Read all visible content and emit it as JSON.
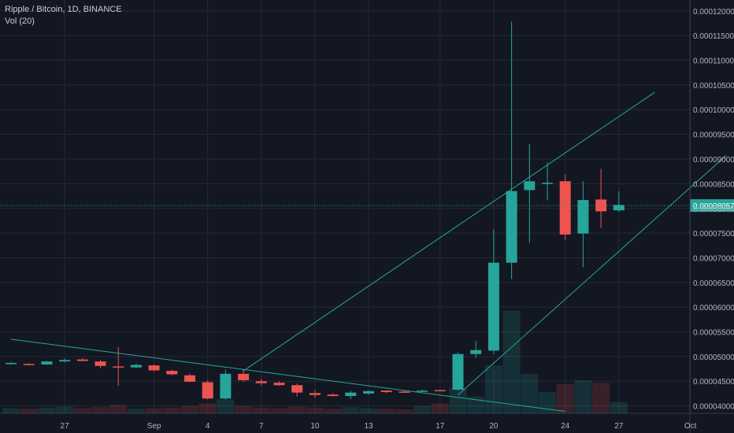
{
  "header": {
    "title": "Ripple / Bitcoin, 1D, BINANCE",
    "volume_label": "Vol (20)"
  },
  "colors": {
    "background": "#131722",
    "grid": "#252a36",
    "up": "#26a69a",
    "down": "#ef5350",
    "trendline": "#26a69a",
    "axis_text": "#b2b5be",
    "last_price_bg": "#26a69a"
  },
  "chart_data": {
    "type": "candlestick",
    "title": "Ripple / Bitcoin, 1D, BINANCE",
    "y_ticks": [
      "0.00004000",
      "0.00004500",
      "0.00005000",
      "0.00005500",
      "0.00006000",
      "0.00006500",
      "0.00007000",
      "0.00007500",
      "0.00008000",
      "0.00008500",
      "0.00009000",
      "0.00009500",
      "0.00010000",
      "0.00010500",
      "0.00011000",
      "0.00011500",
      "0.00012000"
    ],
    "y_range": [
      3.85e-05,
      0.0001222
    ],
    "x_ticks": [
      {
        "date": "2019-08-27",
        "label": "27"
      },
      {
        "date": "2019-09-01",
        "label": "Sep"
      },
      {
        "date": "2019-09-04",
        "label": "4"
      },
      {
        "date": "2019-09-07",
        "label": "7"
      },
      {
        "date": "2019-09-10",
        "label": "10"
      },
      {
        "date": "2019-09-13",
        "label": "13"
      },
      {
        "date": "2019-09-17",
        "label": "17"
      },
      {
        "date": "2019-09-20",
        "label": "20"
      },
      {
        "date": "2019-09-24",
        "label": "24"
      },
      {
        "date": "2019-09-27",
        "label": "27"
      },
      {
        "date": "2019-10-01",
        "label": "Oct"
      }
    ],
    "x_range": [
      "2019-08-24",
      "2019-10-03"
    ],
    "last_price": "0.00008057",
    "candles": [
      {
        "date": "2019-08-24",
        "open": 4.86e-05,
        "high": 4.89e-05,
        "low": 4.84e-05,
        "close": 4.87e-05,
        "volume": 0.9
      },
      {
        "date": "2019-08-25",
        "open": 4.85e-05,
        "high": 4.86e-05,
        "low": 4.82e-05,
        "close": 4.83e-05,
        "volume": 0.8
      },
      {
        "date": "2019-08-26",
        "open": 4.84e-05,
        "high": 4.91e-05,
        "low": 4.83e-05,
        "close": 4.9e-05,
        "volume": 1.0
      },
      {
        "date": "2019-08-27",
        "open": 4.9e-05,
        "high": 4.96e-05,
        "low": 4.88e-05,
        "close": 4.93e-05,
        "volume": 1.2
      },
      {
        "date": "2019-08-28",
        "open": 4.94e-05,
        "high": 4.97e-05,
        "low": 4.9e-05,
        "close": 4.91e-05,
        "volume": 0.9
      },
      {
        "date": "2019-08-29",
        "open": 4.9e-05,
        "high": 4.93e-05,
        "low": 4.77e-05,
        "close": 4.81e-05,
        "volume": 1.1
      },
      {
        "date": "2019-08-30",
        "open": 4.8e-05,
        "high": 5.19e-05,
        "low": 4.41e-05,
        "close": 4.79e-05,
        "volume": 1.5
      },
      {
        "date": "2019-08-31",
        "open": 4.78e-05,
        "high": 4.86e-05,
        "low": 4.76e-05,
        "close": 4.83e-05,
        "volume": 0.8
      },
      {
        "date": "2019-09-01",
        "open": 4.82e-05,
        "high": 4.84e-05,
        "low": 4.7e-05,
        "close": 4.72e-05,
        "volume": 0.9
      },
      {
        "date": "2019-09-02",
        "open": 4.71e-05,
        "high": 4.73e-05,
        "low": 4.62e-05,
        "close": 4.64e-05,
        "volume": 1.0
      },
      {
        "date": "2019-09-03",
        "open": 4.62e-05,
        "high": 4.65e-05,
        "low": 4.48e-05,
        "close": 4.49e-05,
        "volume": 1.3
      },
      {
        "date": "2019-09-04",
        "open": 4.48e-05,
        "high": 4.52e-05,
        "low": 4.13e-05,
        "close": 4.15e-05,
        "volume": 1.8
      },
      {
        "date": "2019-09-05",
        "open": 4.15e-05,
        "high": 4.74e-05,
        "low": 4.13e-05,
        "close": 4.65e-05,
        "volume": 2.5
      },
      {
        "date": "2019-09-06",
        "open": 4.65e-05,
        "high": 4.75e-05,
        "low": 4.49e-05,
        "close": 4.52e-05,
        "volume": 1.3
      },
      {
        "date": "2019-09-07",
        "open": 4.5e-05,
        "high": 4.55e-05,
        "low": 4.42e-05,
        "close": 4.46e-05,
        "volume": 1.0
      },
      {
        "date": "2019-09-08",
        "open": 4.47e-05,
        "high": 4.5e-05,
        "low": 4.41e-05,
        "close": 4.42e-05,
        "volume": 0.9
      },
      {
        "date": "2019-09-09",
        "open": 4.42e-05,
        "high": 4.45e-05,
        "low": 4.19e-05,
        "close": 4.27e-05,
        "volume": 1.2
      },
      {
        "date": "2019-09-10",
        "open": 4.26e-05,
        "high": 4.32e-05,
        "low": 4.17e-05,
        "close": 4.22e-05,
        "volume": 1.0
      },
      {
        "date": "2019-09-11",
        "open": 4.23e-05,
        "high": 4.25e-05,
        "low": 4.19e-05,
        "close": 4.2e-05,
        "volume": 0.8
      },
      {
        "date": "2019-09-12",
        "open": 4.2e-05,
        "high": 4.31e-05,
        "low": 4.14e-05,
        "close": 4.27e-05,
        "volume": 1.1
      },
      {
        "date": "2019-09-13",
        "open": 4.25e-05,
        "high": 4.31e-05,
        "low": 4.23e-05,
        "close": 4.3e-05,
        "volume": 0.9
      },
      {
        "date": "2019-09-14",
        "open": 4.31e-05,
        "high": 4.32e-05,
        "low": 4.26e-05,
        "close": 4.28e-05,
        "volume": 0.8
      },
      {
        "date": "2019-09-15",
        "open": 4.29e-05,
        "high": 4.32e-05,
        "low": 4.27e-05,
        "close": 4.28e-05,
        "volume": 0.7
      },
      {
        "date": "2019-09-16",
        "open": 4.29e-05,
        "high": 4.33e-05,
        "low": 4.28e-05,
        "close": 4.31e-05,
        "volume": 1.3
      },
      {
        "date": "2019-09-17",
        "open": 4.32e-05,
        "high": 4.33e-05,
        "low": 4.3e-05,
        "close": 4.31e-05,
        "volume": 1.8
      },
      {
        "date": "2019-09-18",
        "open": 4.33e-05,
        "high": 5.08e-05,
        "low": 4.31e-05,
        "close": 5.05e-05,
        "volume": 4.5
      },
      {
        "date": "2019-09-19",
        "open": 5.05e-05,
        "high": 5.32e-05,
        "low": 4.97e-05,
        "close": 5.13e-05,
        "volume": 3.0
      },
      {
        "date": "2019-09-20",
        "open": 5.12e-05,
        "high": 7.58e-05,
        "low": 5.05e-05,
        "close": 6.9e-05,
        "volume": 8.5
      },
      {
        "date": "2019-09-21",
        "open": 6.9e-05,
        "high": 0.0001178,
        "low": 6.57e-05,
        "close": 8.35e-05,
        "volume": 18.2
      },
      {
        "date": "2019-09-22",
        "open": 8.37e-05,
        "high": 9.3e-05,
        "low": 7.3e-05,
        "close": 8.55e-05,
        "volume": 7.0
      },
      {
        "date": "2019-09-23",
        "open": 8.52e-05,
        "high": 8.93e-05,
        "low": 8.16e-05,
        "close": 8.52e-05,
        "volume": 3.8
      },
      {
        "date": "2019-09-24",
        "open": 8.55e-05,
        "high": 8.69e-05,
        "low": 7.36e-05,
        "close": 7.47e-05,
        "volume": 5.2
      },
      {
        "date": "2019-09-25",
        "open": 7.49e-05,
        "high": 8.55e-05,
        "low": 6.81e-05,
        "close": 8.17e-05,
        "volume": 5.9
      },
      {
        "date": "2019-09-26",
        "open": 8.18e-05,
        "high": 8.8e-05,
        "low": 7.6e-05,
        "close": 7.94e-05,
        "volume": 5.4
      },
      {
        "date": "2019-09-27",
        "open": 7.96e-05,
        "high": 8.35e-05,
        "low": 7.93e-05,
        "close": 8.07e-05,
        "volume": 2.0
      }
    ],
    "trendlines": [
      {
        "name": "upper-channel",
        "points": [
          {
            "date": "2019-09-06",
            "price": 4.71e-05
          },
          {
            "date": "2019-09-29",
            "price": 0.0001035
          }
        ]
      },
      {
        "name": "lower-channel",
        "points": [
          {
            "date": "2019-09-18",
            "price": 4.22e-05
          },
          {
            "date": "2019-10-03",
            "price": 9.07e-05
          }
        ]
      },
      {
        "name": "descending-support",
        "points": [
          {
            "date": "2019-08-24",
            "price": 5.35e-05
          },
          {
            "date": "2019-09-24",
            "price": 3.89e-05
          }
        ]
      }
    ]
  }
}
